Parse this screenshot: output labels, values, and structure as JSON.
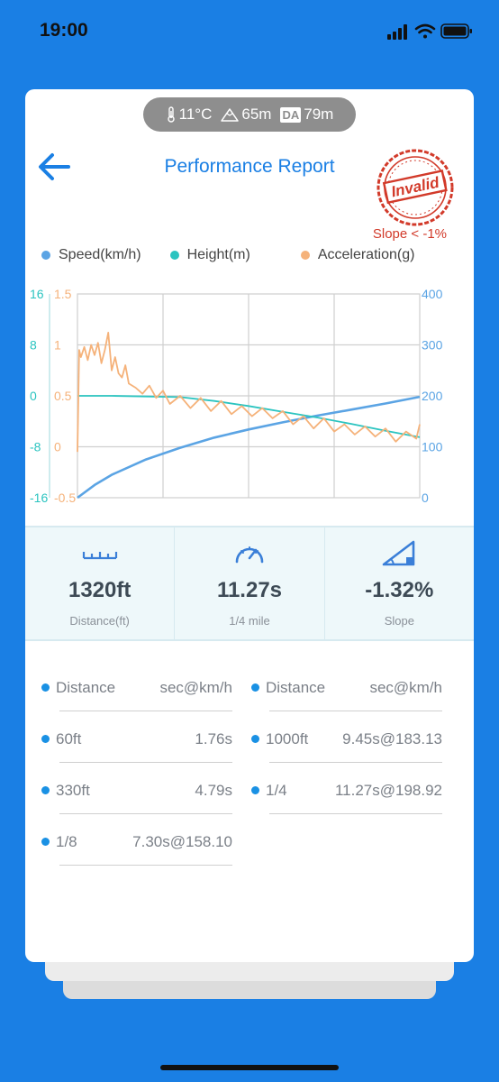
{
  "status_bar": {
    "time": "19:00"
  },
  "weather": {
    "temperature": "11°C",
    "altitude": "65m",
    "da_label": "DA",
    "density_altitude": "79m"
  },
  "header": {
    "title": "Performance Report",
    "stamp_text": "Invalid",
    "warning": "Slope < -1%"
  },
  "legend": [
    {
      "label": "Speed(km/h)",
      "color": "#5ba4e4"
    },
    {
      "label": "Height(m)",
      "color": "#2bc4c0"
    },
    {
      "label": "Acceleration(g)",
      "color": "#f5b27a"
    }
  ],
  "chart_data": {
    "type": "line",
    "y_axes": {
      "height": {
        "ticks": [
          "16",
          "8",
          "0",
          "-8",
          "-16"
        ],
        "ylim": [
          -16,
          16
        ],
        "color": "#2bc4c0"
      },
      "acceleration": {
        "ticks": [
          "1.5",
          "1",
          "0.5",
          "0",
          "-0.5"
        ],
        "ylim": [
          -0.5,
          1.5
        ],
        "color": "#f5b27a"
      },
      "speed": {
        "ticks": [
          "400",
          "300",
          "200",
          "100",
          "0"
        ],
        "ylim": [
          0,
          400
        ],
        "color": "#5ba4e4"
      }
    },
    "grid": true,
    "series": [
      {
        "name": "Speed(km/h)",
        "axis": "speed",
        "x": [
          0,
          5,
          10,
          20,
          30,
          40,
          50,
          60,
          70,
          80,
          90,
          100
        ],
        "values": [
          0,
          25,
          45,
          75,
          98,
          118,
          134,
          148,
          161,
          173,
          185,
          198
        ]
      },
      {
        "name": "Height(m)",
        "axis": "height",
        "x": [
          0,
          10,
          20,
          30,
          40,
          50,
          60,
          70,
          80,
          90,
          100
        ],
        "values": [
          0,
          0,
          -0.1,
          -0.2,
          -0.8,
          -1.6,
          -2.5,
          -3.4,
          -4.4,
          -5.5,
          -6.5
        ]
      },
      {
        "name": "Acceleration(g)",
        "axis": "acceleration",
        "x": [
          0,
          0.5,
          1,
          2,
          3,
          4,
          5,
          6,
          7,
          8,
          9,
          10,
          11,
          12,
          13,
          14,
          15,
          17,
          19,
          21,
          23,
          25,
          27,
          30,
          33,
          36,
          39,
          42,
          45,
          48,
          51,
          54,
          57,
          60,
          63,
          66,
          69,
          72,
          75,
          78,
          81,
          84,
          87,
          90,
          93,
          96,
          99,
          100
        ],
        "values": [
          -0.05,
          0.95,
          0.88,
          0.98,
          0.85,
          1.0,
          0.9,
          1.02,
          0.82,
          0.95,
          1.12,
          0.75,
          0.88,
          0.72,
          0.68,
          0.8,
          0.62,
          0.58,
          0.52,
          0.6,
          0.48,
          0.55,
          0.42,
          0.5,
          0.38,
          0.48,
          0.35,
          0.45,
          0.32,
          0.4,
          0.3,
          0.38,
          0.28,
          0.35,
          0.22,
          0.3,
          0.18,
          0.28,
          0.15,
          0.22,
          0.12,
          0.2,
          0.1,
          0.18,
          0.05,
          0.15,
          0.08,
          0.22
        ]
      }
    ]
  },
  "stats": [
    {
      "value": "1320ft",
      "label": "Distance(ft)",
      "icon": "ruler-icon"
    },
    {
      "value": "11.27s",
      "label": "1/4 mile",
      "icon": "speedometer-icon"
    },
    {
      "value": "-1.32%",
      "label": "Slope",
      "icon": "slope-icon"
    }
  ],
  "splits": {
    "header": {
      "key": "Distance",
      "value": "sec@km/h"
    },
    "left": [
      {
        "key": "60ft",
        "value": "1.76s"
      },
      {
        "key": "330ft",
        "value": "4.79s"
      },
      {
        "key": "1/8",
        "value": "7.30s@158.10"
      }
    ],
    "right": [
      {
        "key": "1000ft",
        "value": "9.45s@183.13"
      },
      {
        "key": "1/4",
        "value": "11.27s@198.92"
      }
    ]
  }
}
